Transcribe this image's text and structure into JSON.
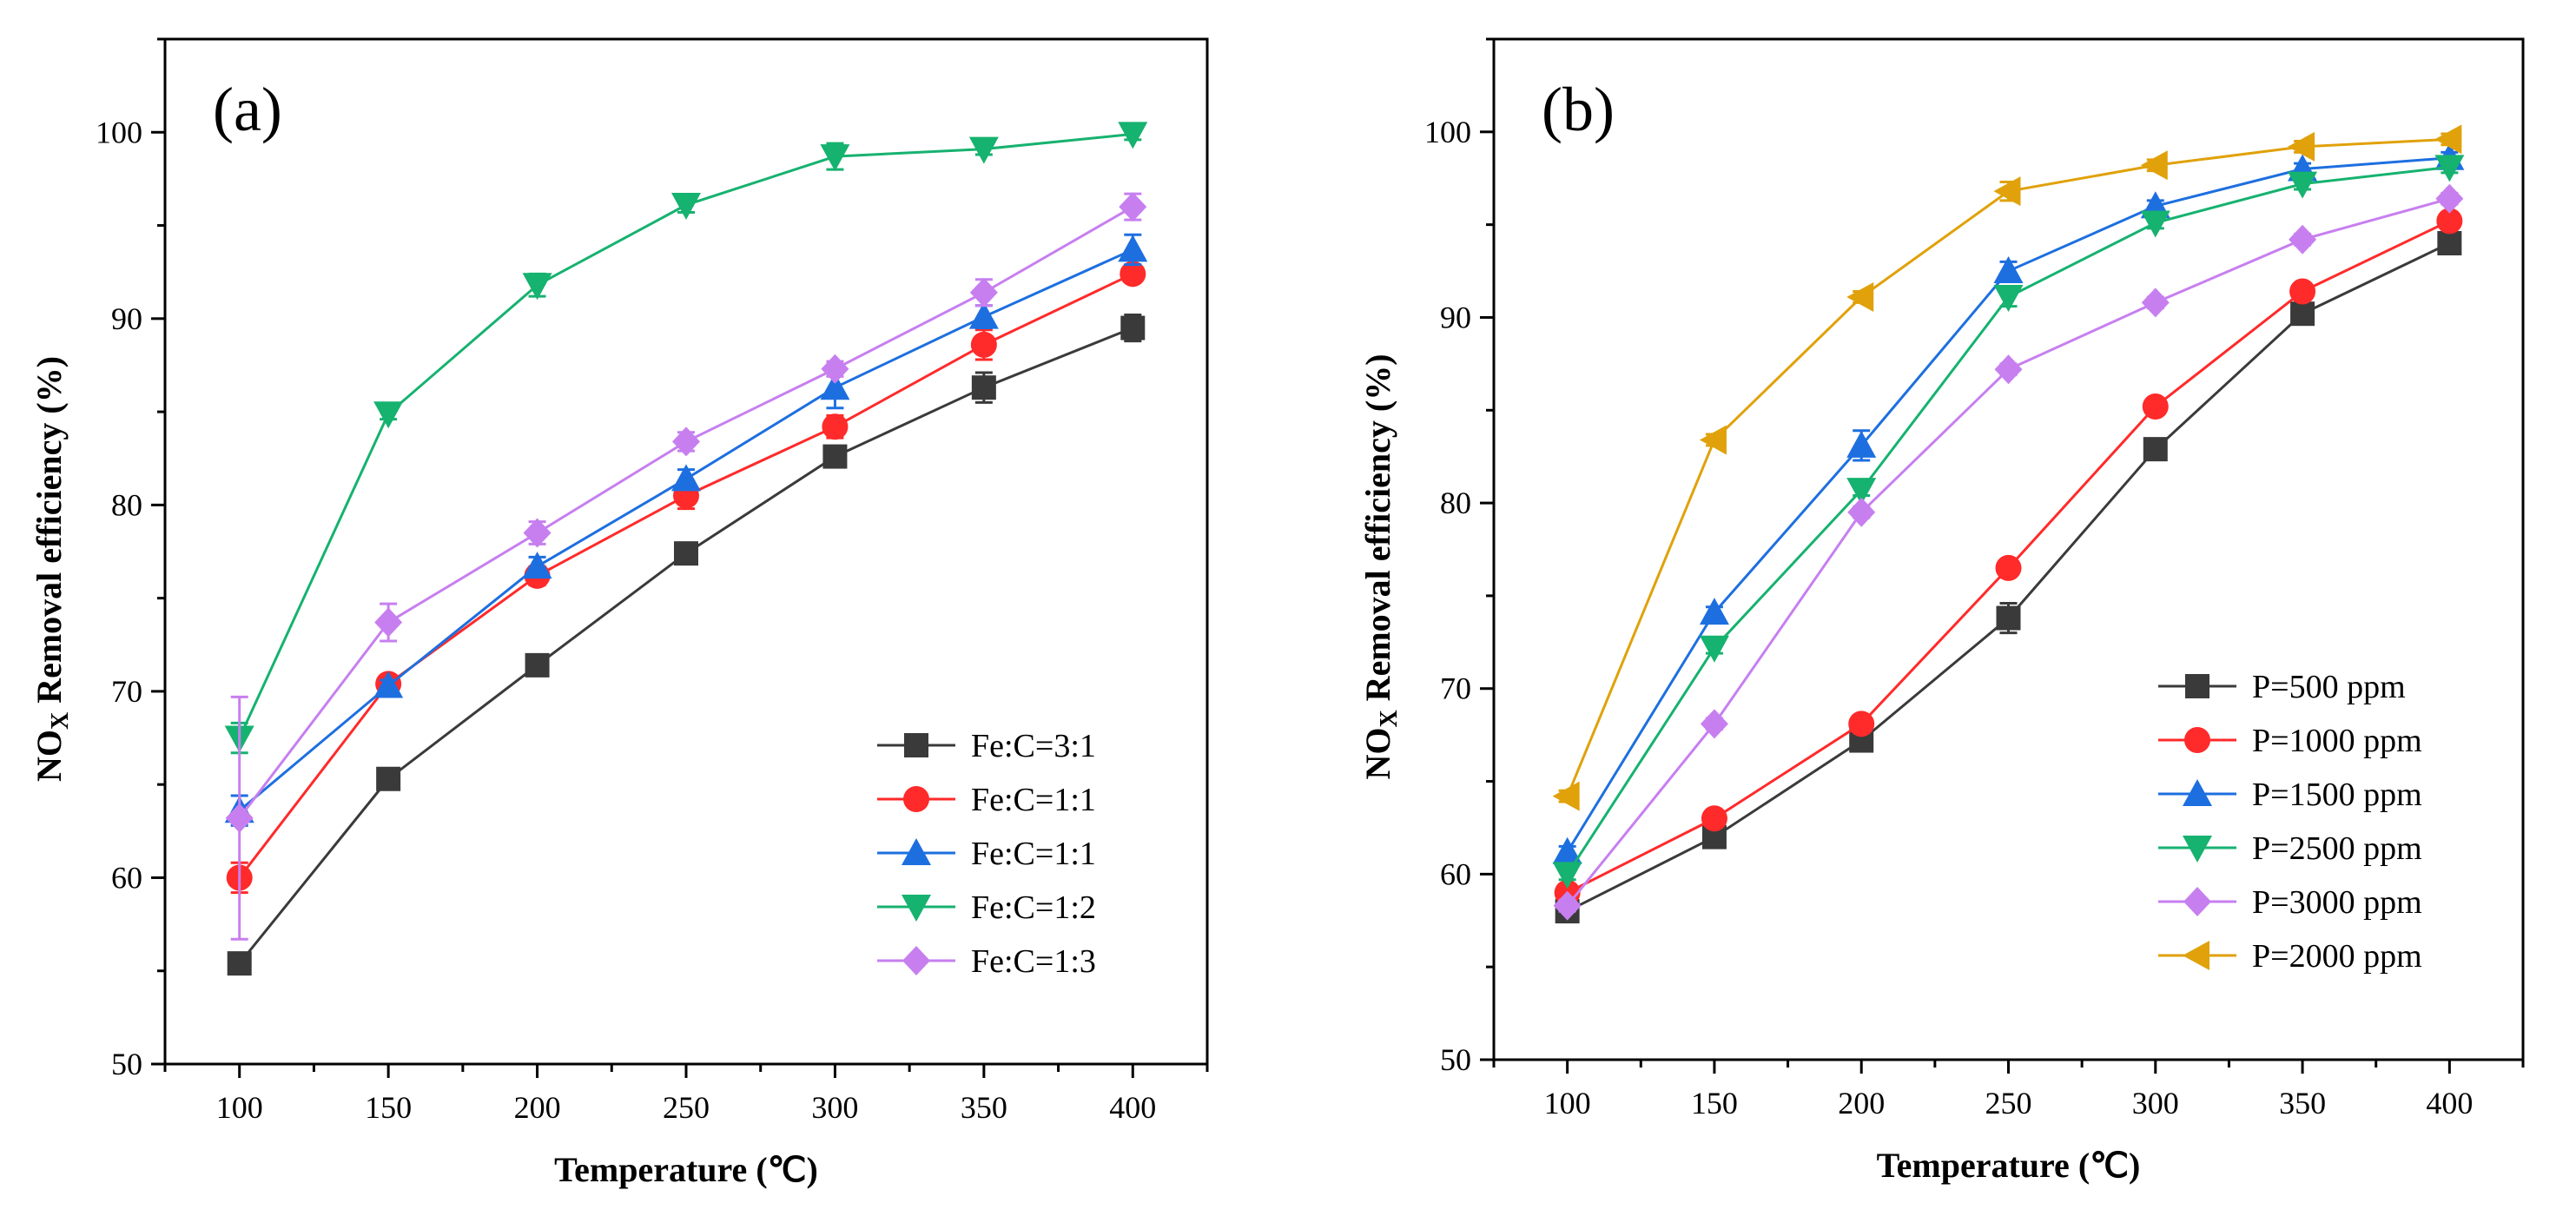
{
  "chart_data": [
    {
      "type": "line",
      "panel_label": "(a)",
      "xlabel": "Temperature (℃)",
      "ylabel_main": "NO",
      "ylabel_sub": "X",
      "ylabel_rest": " Removal efficiency (%)",
      "x": [
        100,
        150,
        200,
        250,
        300,
        350,
        400
      ],
      "xlim": [
        75,
        425
      ],
      "ylim": [
        50,
        105
      ],
      "xticks": [
        100,
        150,
        200,
        250,
        300,
        350,
        400
      ],
      "yticks": [
        50,
        60,
        70,
        80,
        90,
        100
      ],
      "legend_position": "bottom-right",
      "series": [
        {
          "name": "Fe:C=3:1",
          "color": "#3a3a3a",
          "marker": "square",
          "values": [
            55.4,
            65.3,
            71.4,
            77.4,
            82.6,
            86.3,
            89.5
          ],
          "errors": [
            0.5,
            0.4,
            0.4,
            0.4,
            0.4,
            0.8,
            0.7
          ]
        },
        {
          "name": "Fe:C=1:1",
          "color": "#ff2a2a",
          "marker": "circle",
          "values": [
            60.0,
            70.4,
            76.2,
            80.5,
            84.2,
            88.6,
            92.4
          ],
          "errors": [
            0.8,
            0.4,
            0.5,
            0.7,
            0.6,
            0.8,
            0.4
          ]
        },
        {
          "name": "Fe:C=1:1",
          "color": "#1d6fe0",
          "marker": "triangle-up",
          "values": [
            63.6,
            70.3,
            76.7,
            81.4,
            86.3,
            90.1,
            93.7
          ],
          "errors": [
            0.8,
            0.3,
            0.5,
            0.5,
            1.1,
            0.6,
            0.8
          ]
        },
        {
          "name": "Fe:C=1:2",
          "color": "#16b26f",
          "marker": "triangle-down",
          "values": [
            67.5,
            84.9,
            91.8,
            96.1,
            98.7,
            99.1,
            99.9
          ],
          "errors": [
            0.8,
            0.3,
            0.6,
            0.4,
            0.7,
            0.3,
            0.3
          ]
        },
        {
          "name": "Fe:C=1:3",
          "color": "#c77ff0",
          "marker": "diamond",
          "values": [
            63.2,
            73.7,
            78.5,
            83.4,
            87.3,
            91.4,
            96.0
          ],
          "errors": [
            6.5,
            1.0,
            0.6,
            0.5,
            0.4,
            0.7,
            0.7
          ]
        }
      ]
    },
    {
      "type": "line",
      "panel_label": "(b)",
      "xlabel": "Temperature (℃)",
      "ylabel_main": "NO",
      "ylabel_sub": "X",
      "ylabel_rest": " Removal efficiency (%)",
      "x": [
        100,
        150,
        200,
        250,
        300,
        350,
        400
      ],
      "xlim": [
        75,
        425
      ],
      "ylim": [
        50,
        105
      ],
      "xticks": [
        100,
        150,
        200,
        250,
        300,
        350,
        400
      ],
      "yticks": [
        50,
        60,
        70,
        80,
        90,
        100
      ],
      "legend_position": "bottom-right",
      "series": [
        {
          "name": "P=500 ppm",
          "color": "#3a3a3a",
          "marker": "square",
          "values": [
            58.0,
            62.0,
            67.2,
            73.8,
            82.9,
            90.2,
            94.0
          ],
          "errors": [
            0.3,
            0.3,
            0.3,
            0.8,
            0.3,
            0.3,
            0.3
          ]
        },
        {
          "name": "P=1000 ppm",
          "color": "#ff2a2a",
          "marker": "circle",
          "values": [
            59.0,
            63.0,
            68.1,
            76.5,
            85.2,
            91.4,
            95.2
          ],
          "errors": [
            0.3,
            0.3,
            0.3,
            0.3,
            0.3,
            0.3,
            0.3
          ]
        },
        {
          "name": "P=1500 ppm",
          "color": "#1d6fe0",
          "marker": "triangle-up",
          "values": [
            61.2,
            74.1,
            83.1,
            92.5,
            96.0,
            98.0,
            98.6
          ],
          "errors": [
            0.3,
            0.3,
            0.8,
            0.5,
            0.3,
            0.3,
            0.3
          ]
        },
        {
          "name": "P=2500 ppm",
          "color": "#16b26f",
          "marker": "triangle-down",
          "values": [
            60.0,
            72.2,
            80.7,
            91.1,
            95.1,
            97.2,
            98.1
          ],
          "errors": [
            0.3,
            0.3,
            0.3,
            0.5,
            0.3,
            0.3,
            0.3
          ]
        },
        {
          "name": "P=3000 ppm",
          "color": "#c77ff0",
          "marker": "diamond",
          "values": [
            58.3,
            68.1,
            79.5,
            87.2,
            90.8,
            94.2,
            96.4
          ],
          "errors": [
            0.3,
            0.3,
            0.3,
            0.3,
            0.3,
            0.3,
            0.3
          ]
        },
        {
          "name": "P=2000 ppm",
          "color": "#e0a10a",
          "marker": "triangle-left",
          "values": [
            64.2,
            83.4,
            91.1,
            96.8,
            98.2,
            99.2,
            99.6
          ],
          "errors": [
            0.3,
            0.3,
            0.3,
            0.5,
            0.3,
            0.3,
            0.3
          ]
        }
      ]
    }
  ]
}
